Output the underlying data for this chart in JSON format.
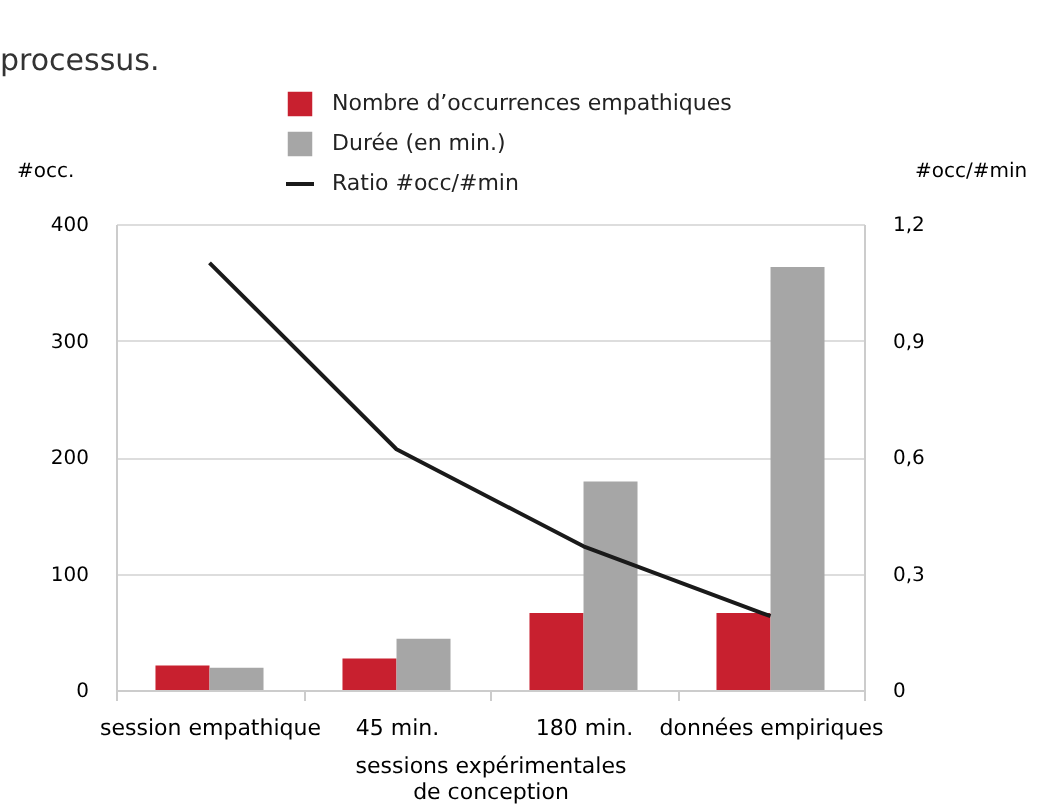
{
  "chart_data": {
    "type": "bar",
    "categories": [
      "session empathique",
      "45 min.",
      "180 min.",
      "données empiriques"
    ],
    "xlabel": "sessions expérimentales\nde conception",
    "ylabel": "#occ.",
    "y2label": "#occ/#min",
    "annotations": [
      "processus."
    ],
    "series": [
      {
        "name": "Nombre d’occurrences empathiques",
        "color": "#c8202f",
        "values": [
          21,
          27,
          66,
          66
        ]
      },
      {
        "name": "Durée (en min.)",
        "color": "#a6a6a6",
        "values": [
          19,
          44,
          179,
          363
        ]
      },
      {
        "name": "Ratio #occ/#min",
        "type": "line",
        "axis": "y2",
        "color": "#1a1a1a",
        "values": [
          1.1,
          0.62,
          0.37,
          0.19
        ]
      }
    ],
    "ylim": [
      0,
      400
    ],
    "yticks": [
      0,
      100,
      200,
      300,
      400
    ],
    "y2lim": [
      0,
      1.2
    ],
    "y2ticks": [
      0,
      {
        "value": 0.3,
        "label": "0,3"
      },
      {
        "value": 0.6,
        "label": "0,6"
      },
      {
        "value": 0.9,
        "label": "0,9"
      },
      {
        "value": 1.2,
        "label": "1,2"
      }
    ],
    "grid": "y",
    "legend": "top",
    "marker": "none",
    "line_style": "solid"
  }
}
